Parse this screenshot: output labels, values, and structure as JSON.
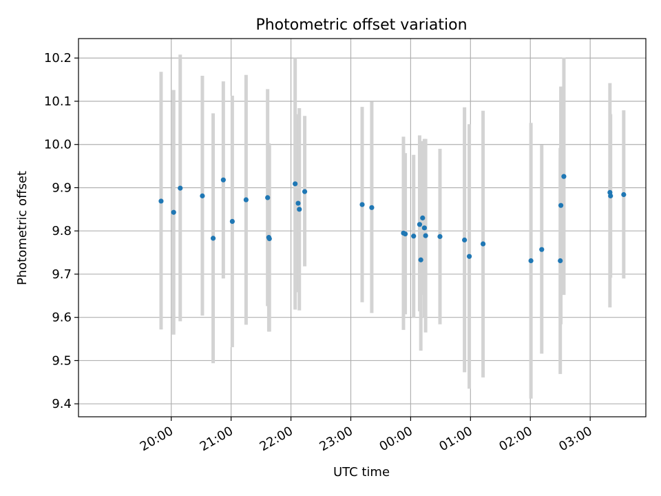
{
  "chart_data": {
    "type": "scatter",
    "title": "Photometric offset variation",
    "xlabel": "UTC time",
    "ylabel": "Photometric offset",
    "grid": true,
    "legend": "none",
    "x_axis_unit": "hours since 00:00 UTC (negative = previous day)",
    "xlim": [
      -5.55,
      3.93
    ],
    "ylim": [
      9.37,
      10.245
    ],
    "xticks": [
      {
        "value": -4,
        "label": "20:00"
      },
      {
        "value": -3,
        "label": "21:00"
      },
      {
        "value": -2,
        "label": "22:00"
      },
      {
        "value": -1,
        "label": "23:00"
      },
      {
        "value": 0,
        "label": "00:00"
      },
      {
        "value": 1,
        "label": "01:00"
      },
      {
        "value": 2,
        "label": "02:00"
      },
      {
        "value": 3,
        "label": "03:00"
      }
    ],
    "yticks": [
      9.4,
      9.5,
      9.6,
      9.7,
      9.8,
      9.9,
      10.0,
      10.1,
      10.2
    ],
    "ytick_labels": [
      "9.4",
      "9.5",
      "9.6",
      "9.7",
      "9.8",
      "9.9",
      "10.0",
      "10.1",
      "10.2"
    ],
    "colors": {
      "points": "#1f77b4",
      "errorbars": "#d3d3d3"
    },
    "points": [
      {
        "t": -4.17,
        "y": 9.869,
        "lo": 9.572,
        "hi": 10.168
      },
      {
        "t": -3.96,
        "y": 9.843,
        "lo": 9.56,
        "hi": 10.126
      },
      {
        "t": -3.85,
        "y": 9.899,
        "lo": 9.591,
        "hi": 10.208
      },
      {
        "t": -3.48,
        "y": 9.881,
        "lo": 9.604,
        "hi": 10.159
      },
      {
        "t": -3.3,
        "y": 9.783,
        "lo": 9.494,
        "hi": 10.072
      },
      {
        "t": -3.13,
        "y": 9.918,
        "lo": 9.69,
        "hi": 10.146
      },
      {
        "t": -2.98,
        "y": 9.822,
        "lo": 9.531,
        "hi": 10.113
      },
      {
        "t": -2.75,
        "y": 9.872,
        "lo": 9.583,
        "hi": 10.161
      },
      {
        "t": -2.39,
        "y": 9.877,
        "lo": 9.626,
        "hi": 10.128
      },
      {
        "t": -2.37,
        "y": 9.785,
        "lo": 9.567,
        "hi": 10.003
      },
      {
        "t": -2.36,
        "y": 9.782,
        "lo": 9.567,
        "hi": 9.998
      },
      {
        "t": -1.93,
        "y": 9.909,
        "lo": 9.618,
        "hi": 10.2
      },
      {
        "t": -1.88,
        "y": 9.864,
        "lo": 9.658,
        "hi": 10.07
      },
      {
        "t": -1.86,
        "y": 9.85,
        "lo": 9.616,
        "hi": 10.084
      },
      {
        "t": -1.77,
        "y": 9.891,
        "lo": 9.718,
        "hi": 10.066
      },
      {
        "t": -0.81,
        "y": 9.861,
        "lo": 9.635,
        "hi": 10.087
      },
      {
        "t": -0.65,
        "y": 9.854,
        "lo": 9.61,
        "hi": 10.099
      },
      {
        "t": -0.12,
        "y": 9.795,
        "lo": 9.571,
        "hi": 10.018
      },
      {
        "t": -0.09,
        "y": 9.793,
        "lo": 9.607,
        "hi": 9.98
      },
      {
        "t": 0.05,
        "y": 9.788,
        "lo": 9.6,
        "hi": 9.976
      },
      {
        "t": 0.15,
        "y": 9.815,
        "lo": 9.614,
        "hi": 10.021
      },
      {
        "t": 0.17,
        "y": 9.733,
        "lo": 9.523,
        "hi": 9.943
      },
      {
        "t": 0.2,
        "y": 9.83,
        "lo": 9.652,
        "hi": 10.008
      },
      {
        "t": 0.23,
        "y": 9.807,
        "lo": 9.6,
        "hi": 10.013
      },
      {
        "t": 0.25,
        "y": 9.789,
        "lo": 9.565,
        "hi": 10.013
      },
      {
        "t": 0.49,
        "y": 9.787,
        "lo": 9.584,
        "hi": 9.99
      },
      {
        "t": 0.9,
        "y": 9.779,
        "lo": 9.473,
        "hi": 10.086
      },
      {
        "t": 0.98,
        "y": 9.741,
        "lo": 9.435,
        "hi": 10.047
      },
      {
        "t": 1.21,
        "y": 9.77,
        "lo": 9.461,
        "hi": 10.078
      },
      {
        "t": 2.01,
        "y": 9.731,
        "lo": 9.412,
        "hi": 10.05
      },
      {
        "t": 2.19,
        "y": 9.757,
        "lo": 9.516,
        "hi": 9.999
      },
      {
        "t": 2.5,
        "y": 9.731,
        "lo": 9.469,
        "hi": 9.992
      },
      {
        "t": 2.51,
        "y": 9.859,
        "lo": 9.584,
        "hi": 10.134
      },
      {
        "t": 2.56,
        "y": 9.926,
        "lo": 9.652,
        "hi": 10.201
      },
      {
        "t": 3.33,
        "y": 9.889,
        "lo": 9.623,
        "hi": 10.142
      },
      {
        "t": 3.34,
        "y": 9.881,
        "lo": 9.692,
        "hi": 10.07
      },
      {
        "t": 3.56,
        "y": 9.884,
        "lo": 9.69,
        "hi": 10.079
      }
    ]
  }
}
